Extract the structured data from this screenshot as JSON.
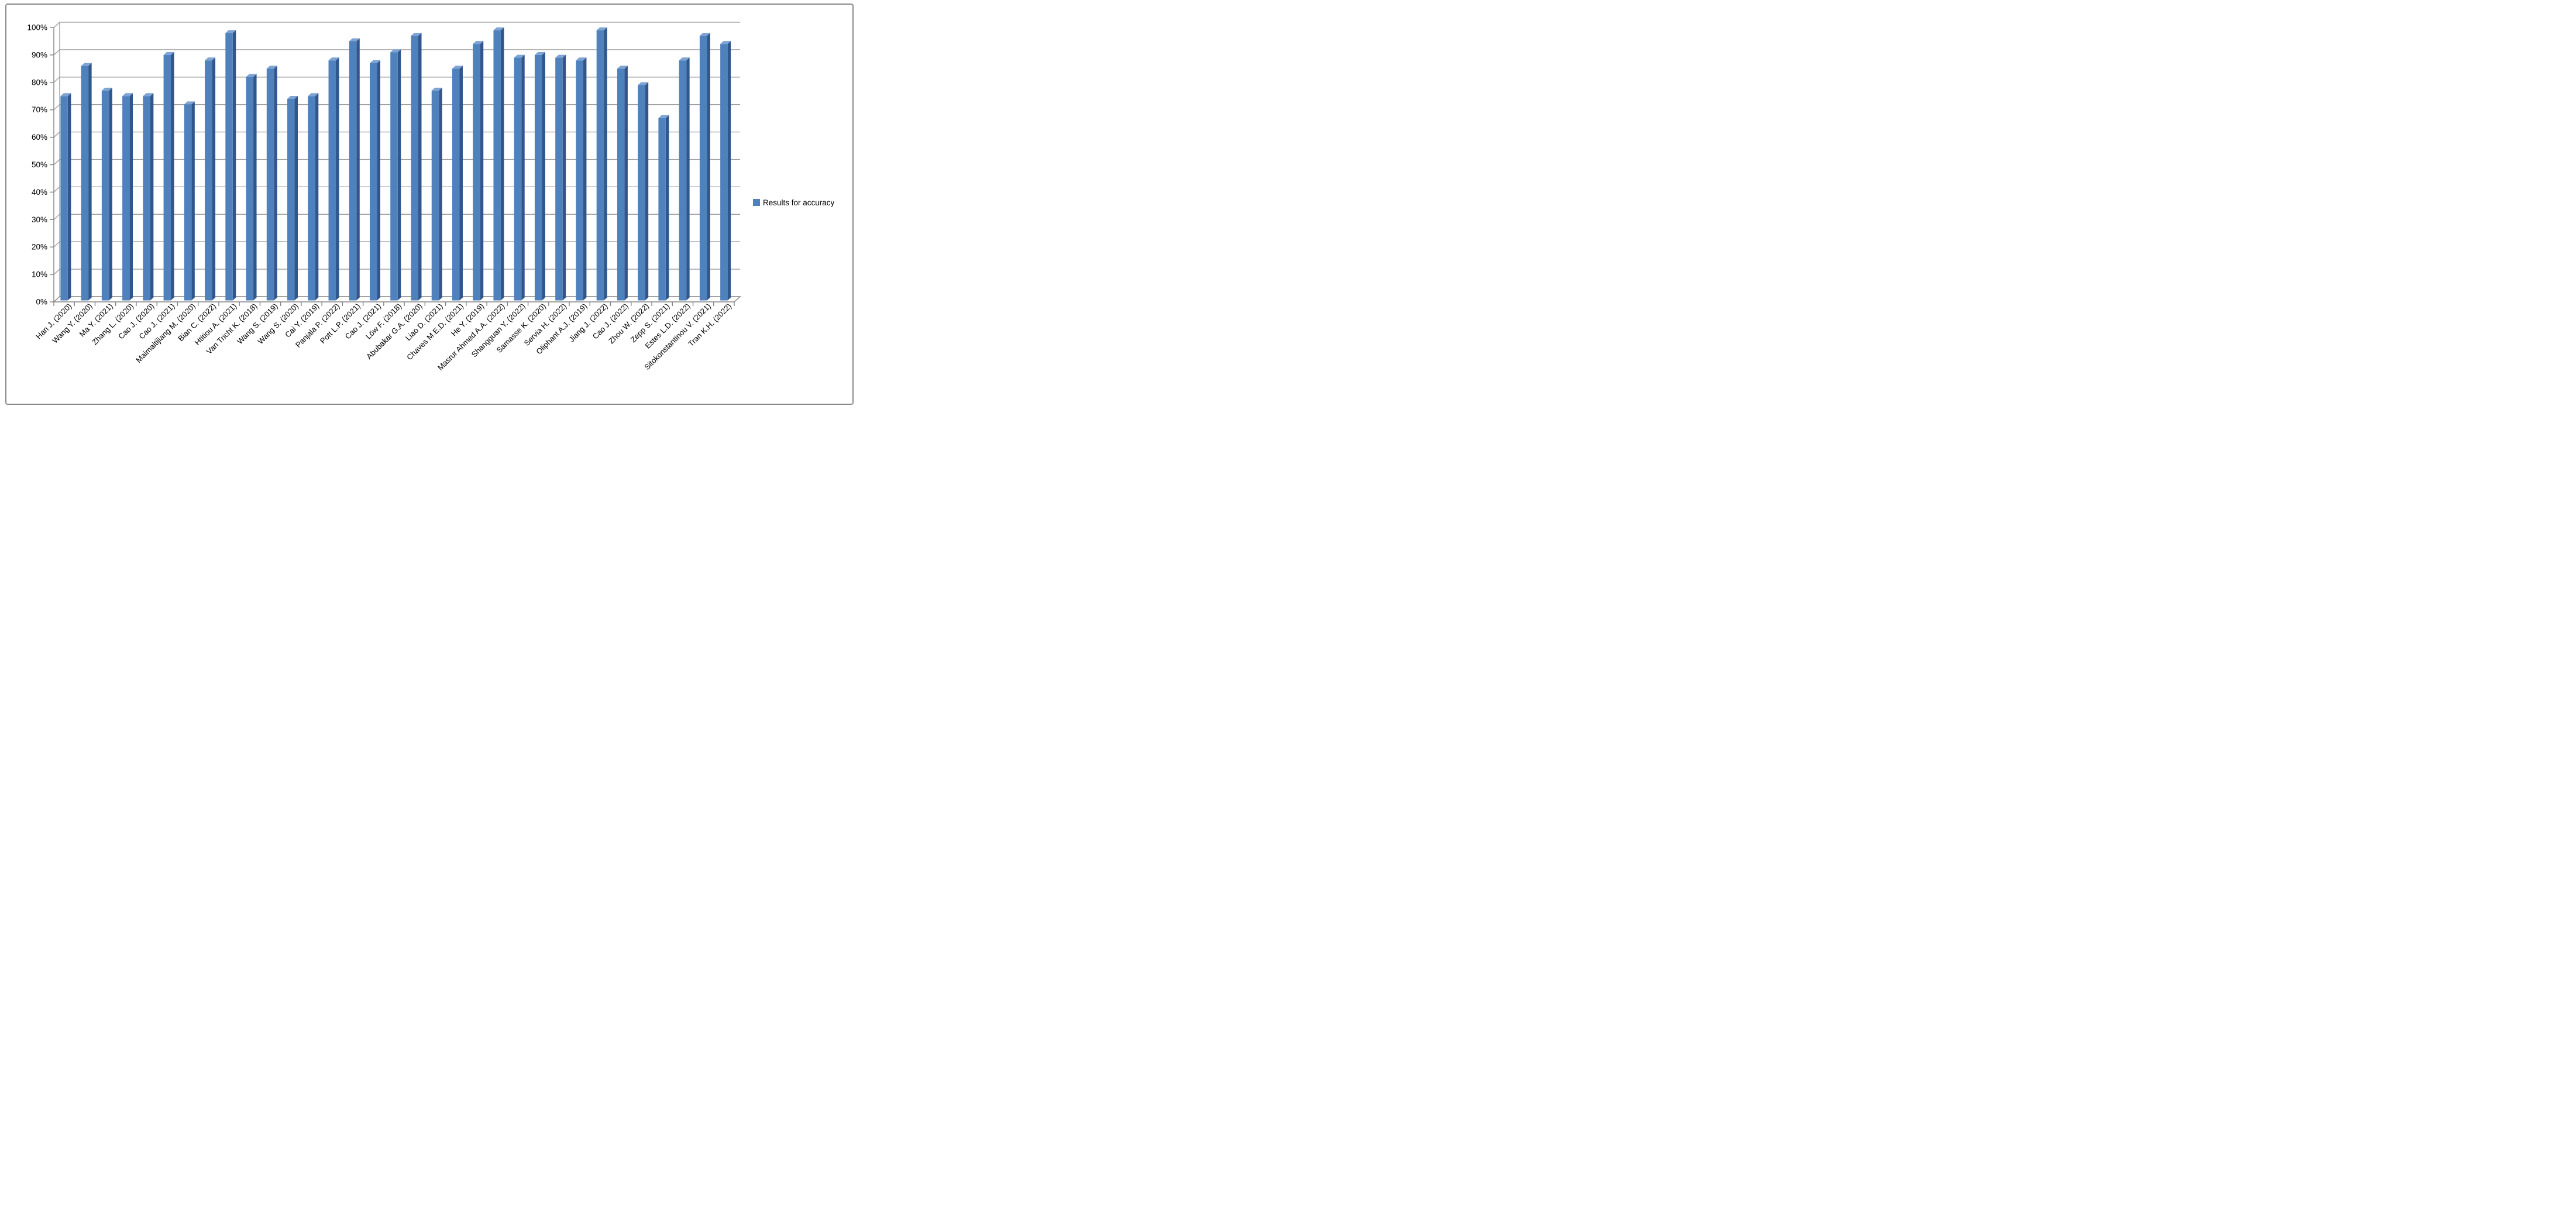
{
  "chart_data": {
    "type": "bar",
    "title": "",
    "xlabel": "",
    "ylabel": "",
    "categories": [
      "Han J. (2020)",
      "Wang Y. (2020)",
      "Ma Y. (2021)",
      "Zhang L. (2020)",
      "Cao J. (2020)",
      "Cao J. (2021)",
      "Maimaitijiang M. (2020)",
      "Bian C. (2022)",
      "Htitiou A. (2021)",
      "Van Tricht K. (2018)",
      "Wang S. (2019)",
      "Wang S. (2020)",
      "Cai Y. (2019)",
      "Panjala P. (2022)",
      "Pott L.P. (2021)",
      "Cao J. (2021)",
      "Löw F. (2018)",
      "Abubakar G.A. (2020)",
      "Liao D. (2021)",
      "Chaves M.E.D. (2021)",
      "He Y. (2019)",
      "Masrur Ahmed A.A. (2022)",
      "Shangguan Y. (2022)",
      "Samasse K. (2020)",
      "Servia H. (2022)",
      "Oliphant A.J. (2019)",
      "Jiang J. (2022)",
      "Cao J. (2022)",
      "Zhou W. (2022)",
      "Zepp S. (2021)",
      "Estes L.D. (2022)",
      "Sitokonstantinou V. (2021)",
      "Tran K.H. (2022)"
    ],
    "series": [
      {
        "name": "Results for accuracy",
        "values": [
          75,
          86,
          77,
          75,
          75,
          90,
          72,
          88,
          98,
          82,
          85,
          74,
          75,
          88,
          95,
          87,
          91,
          97,
          77,
          85,
          94,
          99,
          89,
          90,
          89,
          88,
          99,
          85,
          79,
          67,
          88,
          97,
          94
        ]
      }
    ],
    "y_ticks": [
      "0%",
      "10%",
      "20%",
      "30%",
      "40%",
      "50%",
      "60%",
      "70%",
      "80%",
      "90%",
      "100%"
    ],
    "ylim": [
      0,
      100
    ],
    "grid": true,
    "legend_position": "right",
    "bar_color": "#4F81BD",
    "bar_side_color": "#31568C",
    "bar_top_color": "#7EA4D4",
    "axis_color": "#848484",
    "gridline_color": "#999999"
  },
  "legend": {
    "label": "Results for accuracy",
    "swatch_color": "#4F81BD"
  }
}
